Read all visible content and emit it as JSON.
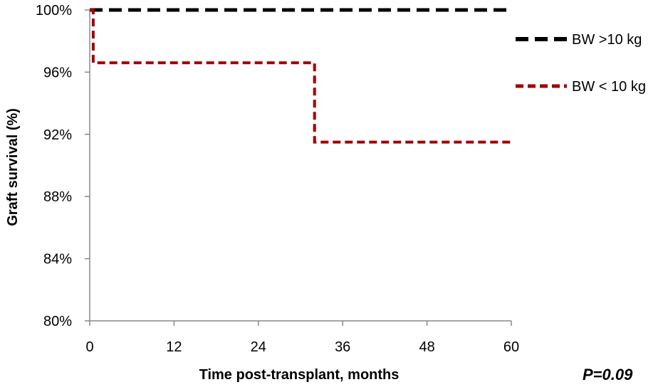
{
  "chart_data": {
    "type": "line",
    "step": true,
    "xlabel": "Time post-transplant,  months",
    "ylabel": "Graft survival (%)",
    "xlim": [
      0,
      60
    ],
    "ylim": [
      80,
      100
    ],
    "xticks": [
      0,
      12,
      24,
      36,
      48,
      60
    ],
    "yticks": [
      80,
      84,
      88,
      92,
      96,
      100
    ],
    "ytick_labels": [
      "80%",
      "84%",
      "88%",
      "92%",
      "96%",
      "100%"
    ],
    "grid": false,
    "legend_position": "right",
    "annotation": "P=0.09",
    "series": [
      {
        "name": "BW >10 kg",
        "color": "#000000",
        "dash": "long",
        "x": [
          0,
          60
        ],
        "y": [
          100,
          100
        ]
      },
      {
        "name": "BW < 10 kg",
        "color": "#a00000",
        "dash": "short",
        "x": [
          0,
          0.5,
          0.5,
          32,
          32,
          60
        ],
        "y": [
          100,
          100,
          96.6,
          96.6,
          91.5,
          91.5
        ]
      }
    ]
  }
}
